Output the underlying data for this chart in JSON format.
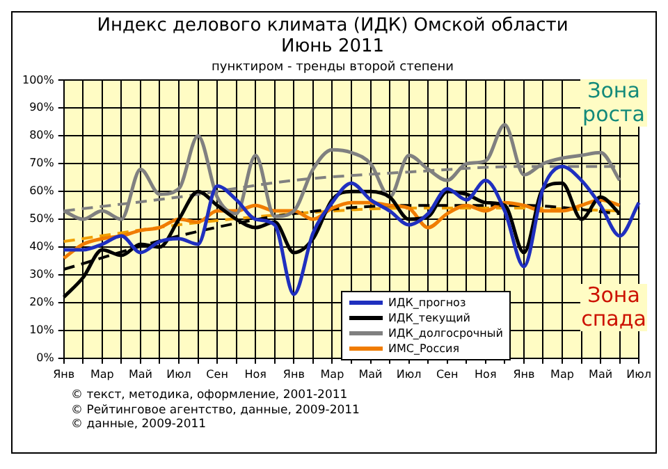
{
  "chart_data": {
    "type": "line",
    "title": "Индекс делового климата (ИДК) Омской области\nИюнь 2011",
    "subtitle": "пунктиром - тренды второй степени",
    "categories": [
      "Янв",
      null,
      "Мар",
      null,
      "Май",
      null,
      "Июл",
      null,
      "Сен",
      null,
      "Ноя",
      null,
      "Янв",
      null,
      "Мар",
      null,
      "Май",
      null,
      "Июл",
      null,
      "Сен",
      null,
      "Ноя",
      null,
      "Янв",
      null,
      "Мар",
      null,
      "Май",
      null,
      "Июл"
    ],
    "series": [
      {
        "name": "ИДК_прогноз",
        "color": "#1f2fbf",
        "values": [
          39,
          39,
          41,
          44,
          38,
          42,
          43,
          41,
          62,
          57,
          50,
          48,
          23,
          45,
          56,
          63,
          57,
          53,
          48,
          52,
          61,
          57,
          64,
          53,
          33,
          61,
          69,
          64,
          55,
          44,
          56
        ]
      },
      {
        "name": "ИДК_текущий",
        "color": "#000000",
        "values": [
          22,
          29,
          39,
          37,
          41,
          40,
          50,
          60,
          55,
          50,
          47,
          49,
          38,
          43,
          57,
          60,
          60,
          58,
          50,
          51,
          60,
          59,
          56,
          55,
          38,
          61,
          63,
          50,
          58,
          52,
          null
        ]
      },
      {
        "name": "ИДК_долгосрочный",
        "color": "#808080",
        "values": [
          53,
          50,
          53,
          50,
          68,
          59,
          61,
          80,
          58,
          52,
          73,
          51,
          53,
          68,
          75,
          74,
          70,
          58,
          73,
          68,
          64,
          70,
          71,
          84,
          66,
          70,
          72,
          73,
          74,
          64,
          null
        ]
      },
      {
        "name": "ИМС_Россия",
        "color": "#f07c00",
        "values": [
          36,
          41,
          43,
          44,
          46,
          47,
          50,
          49,
          53,
          53,
          55,
          53,
          53,
          50,
          54,
          56,
          56,
          55,
          54,
          47,
          52,
          55,
          53,
          56,
          55,
          53,
          53,
          55,
          57,
          55,
          null
        ]
      },
      {
        "color": "#000000",
        "line_style": "dashed",
        "values": [
          32,
          null,
          null,
          null,
          null,
          null,
          44,
          null,
          null,
          null,
          null,
          null,
          52,
          null,
          null,
          null,
          null,
          null,
          55,
          null,
          null,
          null,
          null,
          null,
          55,
          null,
          null,
          null,
          null,
          52,
          null
        ]
      },
      {
        "color": "#808080",
        "line_style": "dashed",
        "values": [
          53,
          null,
          null,
          null,
          null,
          null,
          58,
          null,
          null,
          null,
          null,
          null,
          64,
          null,
          null,
          null,
          null,
          null,
          67,
          null,
          null,
          null,
          null,
          null,
          69,
          null,
          null,
          null,
          null,
          69,
          null
        ]
      },
      {
        "color": "#f0a000",
        "line_style": "dashed",
        "values": [
          42,
          null,
          null,
          null,
          null,
          null,
          48,
          null,
          null,
          null,
          null,
          null,
          52,
          null,
          null,
          null,
          null,
          null,
          54,
          null,
          null,
          null,
          null,
          null,
          54,
          null,
          null,
          null,
          null,
          53,
          null
        ]
      }
    ],
    "ylim": [
      0,
      100
    ],
    "yticks": [
      {
        "value": 0,
        "label": "0%"
      },
      {
        "value": 10,
        "label": "10%"
      },
      {
        "value": 20,
        "label": "20%"
      },
      {
        "value": 30,
        "label": "30%"
      },
      {
        "value": 40,
        "label": "40%"
      },
      {
        "value": 50,
        "label": "50%"
      },
      {
        "value": 60,
        "label": "60%"
      },
      {
        "value": 70,
        "label": "70%"
      },
      {
        "value": 80,
        "label": "80%"
      },
      {
        "value": 90,
        "label": "90%"
      },
      {
        "value": 100,
        "label": "100%"
      }
    ],
    "grid": true,
    "legend": "bottom right",
    "marker": "none",
    "line_style": "solid",
    "annotations": [
      "Зона роста",
      "Зона спада",
      "© текст, методика, оформление, 2001-2011",
      "© Рейтинговое агентство, данные, 2009-2011",
      "© данные, 2009-2011"
    ]
  }
}
